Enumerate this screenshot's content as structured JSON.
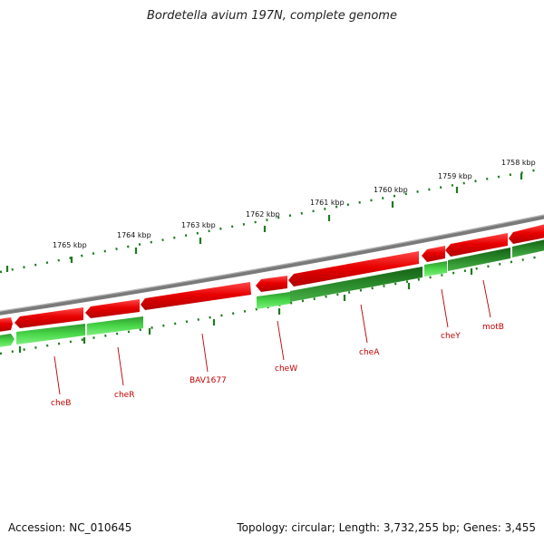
{
  "title": "Bordetella avium 197N, complete genome",
  "footer": {
    "accession": "Accession: NC_010645",
    "summary": "Topology: circular; Length: 3,732,255 bp; Genes: 3,455"
  },
  "colors": {
    "forward_gene": "#e80000",
    "reverse_gene_light": "#44d444",
    "reverse_gene_dark": "#1f7a1f",
    "backbone": "#888888",
    "tick": "#1f7a1f",
    "label": "#c00000"
  },
  "scale_ticks": [
    {
      "label": "1758 kbp"
    },
    {
      "label": "1759 kbp"
    },
    {
      "label": "1760 kbp"
    },
    {
      "label": "1761 kbp"
    },
    {
      "label": "1762 kbp"
    },
    {
      "label": "1763 kbp"
    },
    {
      "label": "1764 kbp"
    },
    {
      "label": "1765 kbp"
    }
  ],
  "gene_labels": [
    {
      "label": "cheB"
    },
    {
      "label": "cheR"
    },
    {
      "label": "BAV1677"
    },
    {
      "label": "cheW"
    },
    {
      "label": "cheA"
    },
    {
      "label": "cheY"
    },
    {
      "label": "motB"
    }
  ]
}
